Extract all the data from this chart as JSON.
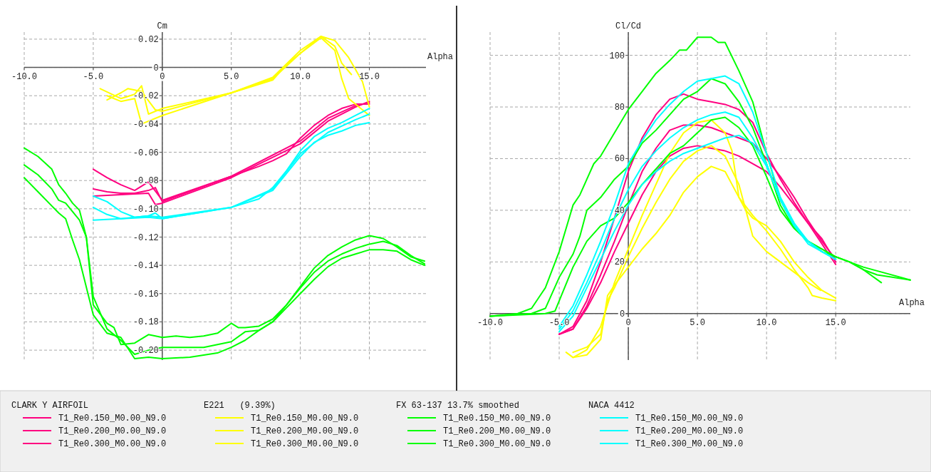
{
  "chart_data": [
    {
      "type": "line",
      "xlabel": "Alpha",
      "ylabel": "Cm",
      "xlim": [
        -10,
        19.1
      ],
      "ylim": [
        -0.207,
        0.025
      ],
      "xticks": [
        {
          "value": -10,
          "label": "-10.0"
        },
        {
          "value": -5,
          "label": "-5.0"
        },
        {
          "value": 0,
          "label": "0"
        },
        {
          "value": 5,
          "label": "5.0"
        },
        {
          "value": 10,
          "label": "10.0"
        },
        {
          "value": 15,
          "label": "15.0"
        }
      ],
      "yticks": [
        {
          "value": 0.02,
          "label": "0.02"
        },
        {
          "value": 0,
          "label": "0"
        },
        {
          "value": -0.02,
          "label": "-0.02"
        },
        {
          "value": -0.04,
          "label": "-0.04"
        },
        {
          "value": -0.06,
          "label": "-0.06"
        },
        {
          "value": -0.08,
          "label": "-0.08"
        },
        {
          "value": -0.1,
          "label": "-0.10"
        },
        {
          "value": -0.12,
          "label": "-0.12"
        },
        {
          "value": -0.14,
          "label": "-0.14"
        },
        {
          "value": -0.16,
          "label": "-0.16"
        },
        {
          "value": -0.18,
          "label": "-0.18"
        },
        {
          "value": -0.2,
          "label": "-0.20"
        }
      ],
      "grid": true,
      "legend": "bottom",
      "line_style": "solid",
      "marker": "none",
      "annotations": [
        "CLARK Y AIRFOIL",
        "E221   (9.39%)",
        "FX 63-137 13.7% smoothed",
        "NACA 4412"
      ],
      "series": [
        {
          "name": "T1_Re0.150_M0.00_N9.0",
          "color": "#ff0080",
          "x": [
            -5,
            -4,
            -3,
            -2,
            -1,
            0,
            5,
            7,
            8,
            9,
            10,
            11,
            12,
            13,
            14,
            15
          ],
          "values": [
            -0.072,
            -0.078,
            -0.083,
            -0.087,
            -0.081,
            -0.094,
            -0.077,
            -0.07,
            -0.066,
            -0.061,
            -0.05,
            -0.041,
            -0.034,
            -0.029,
            -0.026,
            -0.026
          ]
        },
        {
          "name": "T1_Re0.200_M0.00_N9.0",
          "color": "#ff0080",
          "x": [
            -5,
            -4,
            -3,
            -2,
            -1,
            -0.5,
            0,
            5,
            10,
            12,
            14,
            15
          ],
          "values": [
            -0.086,
            -0.088,
            -0.089,
            -0.089,
            -0.087,
            -0.085,
            -0.095,
            -0.077,
            -0.052,
            -0.036,
            -0.027,
            -0.025
          ]
        },
        {
          "name": "T1_Re0.300_M0.00_N9.0",
          "color": "#ff0080",
          "x": [
            -5,
            -3,
            -1,
            -0.5,
            0,
            5,
            10,
            12,
            14,
            15
          ],
          "values": [
            -0.091,
            -0.09,
            -0.089,
            -0.097,
            -0.096,
            -0.078,
            -0.054,
            -0.038,
            -0.028,
            -0.024
          ]
        },
        {
          "name": "T1_Re0.150_M0.00_N9.0",
          "color": "#ffff00",
          "x": [
            -4.5,
            -3,
            -2,
            -1.5,
            -1,
            0,
            5,
            8,
            9,
            10,
            11,
            11.5,
            12.5,
            13,
            13.7
          ],
          "values": [
            -0.015,
            -0.022,
            -0.019,
            -0.013,
            -0.033,
            -0.029,
            -0.018,
            -0.009,
            0.002,
            0.01,
            0.018,
            0.022,
            0.015,
            0.003,
            -0.005
          ]
        },
        {
          "name": "T1_Re0.200_M0.00_N9.0",
          "color": "#ffff00",
          "x": [
            -4,
            -3,
            -2.5,
            -1.5,
            -0.5,
            0,
            5,
            8,
            10,
            11.5,
            12.5,
            13.5,
            14.5,
            15
          ],
          "values": [
            -0.023,
            -0.018,
            -0.015,
            -0.017,
            -0.03,
            -0.031,
            -0.018,
            -0.007,
            0.012,
            0.022,
            0.019,
            0.007,
            -0.01,
            -0.028
          ]
        },
        {
          "name": "T1_Re0.300_M0.00_N9.0",
          "color": "#ffff00",
          "x": [
            -4,
            -3,
            -2,
            -1.5,
            0,
            5,
            8,
            10,
            11.5,
            12.5,
            13,
            13.5,
            15
          ],
          "values": [
            -0.02,
            -0.024,
            -0.022,
            -0.04,
            -0.034,
            -0.018,
            -0.008,
            0.01,
            0.021,
            0.012,
            -0.008,
            -0.022,
            -0.034
          ]
        },
        {
          "name": "T1_Re0.150_M0.00_N9.0",
          "color": "#00ff00",
          "x": [
            -10,
            -9,
            -8,
            -7.5,
            -7,
            -6.5,
            -6,
            -5.5,
            -5,
            -4,
            -3.5,
            -3,
            -2,
            -1,
            0,
            1,
            2,
            3,
            4,
            5,
            5.5,
            6,
            7,
            8,
            9,
            10,
            11,
            12,
            13,
            14,
            15,
            16,
            17,
            18,
            19
          ],
          "values": [
            -0.057,
            -0.063,
            -0.072,
            -0.083,
            -0.089,
            -0.096,
            -0.101,
            -0.12,
            -0.168,
            -0.181,
            -0.184,
            -0.196,
            -0.195,
            -0.189,
            -0.191,
            -0.19,
            -0.191,
            -0.19,
            -0.188,
            -0.181,
            -0.184,
            -0.184,
            -0.183,
            -0.178,
            -0.168,
            -0.155,
            -0.142,
            -0.133,
            -0.127,
            -0.122,
            -0.119,
            -0.121,
            -0.127,
            -0.134,
            -0.137
          ]
        },
        {
          "name": "T1_Re0.200_M0.00_N9.0",
          "color": "#00ff00",
          "x": [
            -10,
            -9,
            -8,
            -7.5,
            -7,
            -6,
            -5.5,
            -5,
            -4,
            -3,
            -2,
            -1,
            0,
            3,
            5,
            6,
            7,
            8,
            9,
            10,
            11,
            12,
            13,
            14,
            15,
            16,
            17,
            18,
            19
          ],
          "values": [
            -0.069,
            -0.076,
            -0.086,
            -0.094,
            -0.096,
            -0.108,
            -0.12,
            -0.162,
            -0.185,
            -0.193,
            -0.203,
            -0.2,
            -0.198,
            -0.198,
            -0.194,
            -0.187,
            -0.186,
            -0.18,
            -0.168,
            -0.156,
            -0.145,
            -0.137,
            -0.132,
            -0.128,
            -0.125,
            -0.123,
            -0.126,
            -0.133,
            -0.139
          ]
        },
        {
          "name": "T1_Re0.300_M0.00_N9.0",
          "color": "#00ff00",
          "x": [
            -10,
            -9,
            -8,
            -7.5,
            -7,
            -6.5,
            -6,
            -5,
            -4,
            -3,
            -2,
            -1,
            0,
            2,
            4,
            5,
            6,
            7,
            8,
            9,
            10,
            11,
            12,
            13,
            14,
            15,
            16,
            17,
            18,
            19
          ],
          "values": [
            -0.078,
            -0.088,
            -0.098,
            -0.103,
            -0.107,
            -0.122,
            -0.136,
            -0.175,
            -0.188,
            -0.191,
            -0.206,
            -0.205,
            -0.206,
            -0.205,
            -0.202,
            -0.198,
            -0.193,
            -0.186,
            -0.18,
            -0.17,
            -0.16,
            -0.15,
            -0.141,
            -0.135,
            -0.132,
            -0.129,
            -0.129,
            -0.13,
            -0.136,
            -0.14
          ]
        },
        {
          "name": "T1_Re0.150_M0.00_N9.0",
          "color": "#00ffff",
          "x": [
            -5,
            -4,
            -3,
            -2,
            -1,
            -0.5,
            0,
            5,
            7,
            8,
            9,
            10,
            11,
            12,
            13,
            14,
            15
          ],
          "values": [
            -0.091,
            -0.095,
            -0.102,
            -0.106,
            -0.105,
            -0.103,
            -0.107,
            -0.099,
            -0.093,
            -0.085,
            -0.073,
            -0.059,
            -0.049,
            -0.043,
            -0.039,
            -0.034,
            -0.029
          ]
        },
        {
          "name": "T1_Re0.200_M0.00_N9.0",
          "color": "#00ffff",
          "x": [
            -5,
            -4,
            -3,
            -1,
            0,
            5,
            8,
            10,
            12,
            14,
            15
          ],
          "values": [
            -0.099,
            -0.104,
            -0.107,
            -0.106,
            -0.107,
            -0.099,
            -0.086,
            -0.061,
            -0.046,
            -0.037,
            -0.033
          ]
        },
        {
          "name": "T1_Re0.300_M0.00_N9.0",
          "color": "#00ffff",
          "x": [
            -5,
            -3,
            -1,
            0,
            5,
            8,
            10,
            11,
            12,
            13,
            14,
            15
          ],
          "values": [
            -0.108,
            -0.107,
            -0.105,
            -0.106,
            -0.099,
            -0.087,
            -0.063,
            -0.053,
            -0.048,
            -0.045,
            -0.041,
            -0.039
          ]
        }
      ]
    },
    {
      "type": "line",
      "xlabel": "Alpha",
      "ylabel": "Cl/Cd",
      "xlim": [
        -10,
        20.4
      ],
      "ylim": [
        -18,
        109
      ],
      "xticks": [
        {
          "value": -10,
          "label": "-10.0"
        },
        {
          "value": -5,
          "label": "-5.0"
        },
        {
          "value": 0,
          "label": "0"
        },
        {
          "value": 5,
          "label": "5.0"
        },
        {
          "value": 10,
          "label": "10.0"
        },
        {
          "value": 15,
          "label": "15.0"
        }
      ],
      "yticks": [
        0,
        20,
        40,
        60,
        80,
        100
      ],
      "grid": true,
      "line_style": "solid",
      "marker": "none",
      "series": [
        {
          "color": "#ff0080",
          "x": [
            -5,
            -4,
            -3,
            -2,
            -1,
            0,
            1,
            2,
            3,
            4,
            5,
            6,
            7,
            8,
            9,
            10,
            11,
            12,
            13,
            14,
            15
          ],
          "values": [
            -8,
            -5,
            5,
            20,
            37,
            55,
            68,
            77,
            83,
            85,
            83,
            82,
            81,
            79,
            74,
            62,
            52,
            43,
            35,
            27,
            19
          ]
        },
        {
          "color": "#ff0080",
          "x": [
            -5,
            -4,
            -3,
            -2,
            -1,
            0,
            1,
            2,
            3,
            4,
            5,
            6,
            7,
            8,
            9,
            10,
            11,
            12,
            13,
            14,
            15
          ],
          "values": [
            -8,
            -6,
            3,
            15,
            28,
            42,
            55,
            64,
            71,
            73,
            73,
            72,
            70,
            68,
            66,
            60,
            53,
            45,
            36,
            28,
            21
          ]
        },
        {
          "color": "#ff0080",
          "x": [
            -5,
            -4,
            -3,
            -2,
            -1,
            0,
            1,
            2,
            3,
            4,
            5,
            6,
            7,
            8,
            9,
            10,
            11,
            12,
            13,
            14,
            15
          ],
          "values": [
            -8,
            -6,
            2,
            12,
            24,
            35,
            46,
            55,
            61,
            64,
            65,
            64,
            63,
            61,
            58,
            55,
            49,
            42,
            35,
            29,
            20
          ]
        },
        {
          "color": "#ffff00",
          "x": [
            -4.5,
            -4,
            -3,
            -2,
            -1,
            0,
            1,
            2,
            3,
            4,
            5,
            6,
            7,
            7.5,
            8,
            8.5,
            9,
            10,
            11,
            12,
            13,
            14,
            15
          ],
          "values": [
            -15,
            -17,
            -14,
            -5,
            12,
            25,
            38,
            50,
            62,
            70,
            74,
            75,
            70,
            63,
            45,
            40,
            37,
            34,
            28,
            20,
            14,
            9,
            6
          ]
        },
        {
          "color": "#ffff00",
          "x": [
            -4,
            -3,
            -2,
            -1.5,
            -1,
            0,
            1,
            2,
            3,
            4,
            5,
            6,
            7,
            8,
            8.5,
            9,
            10,
            11,
            12,
            13,
            13.9
          ],
          "values": [
            -15,
            -13,
            -8,
            5,
            10,
            22,
            33,
            43,
            52,
            59,
            63,
            65,
            61,
            50,
            40,
            30,
            24,
            20,
            16,
            12,
            9
          ]
        },
        {
          "color": "#ffff00",
          "x": [
            -4,
            -3,
            -2,
            -1.5,
            -1,
            0,
            1,
            2,
            3,
            4,
            5,
            6,
            7,
            8,
            9,
            10,
            11,
            12,
            13,
            13.3,
            14,
            15
          ],
          "values": [
            -17,
            -16,
            -10,
            7,
            11,
            18,
            25,
            31,
            38,
            47,
            53,
            57,
            55,
            45,
            38,
            32,
            25,
            17,
            10,
            7,
            6,
            5
          ]
        },
        {
          "color": "#00ff00",
          "x": [
            -10,
            -8,
            -7,
            -6,
            -5,
            -4,
            -3.5,
            -3,
            -2.5,
            -2,
            -1,
            0,
            1,
            2,
            3,
            3.7,
            4.2,
            5,
            5.5,
            6,
            6.5,
            7,
            8,
            9,
            10,
            11,
            12,
            13,
            14,
            15,
            16,
            17,
            18,
            20.4
          ],
          "values": [
            -1,
            0,
            2,
            10,
            24,
            42,
            46,
            52,
            58,
            61,
            70,
            79,
            86,
            93,
            98,
            102,
            102,
            107,
            107,
            107,
            105,
            105,
            94,
            82,
            62,
            44,
            34,
            28,
            25,
            22,
            20,
            17,
            15,
            13
          ]
        },
        {
          "color": "#00ff00",
          "x": [
            -10,
            -7,
            -6,
            -5,
            -4,
            -3.5,
            -3,
            -2,
            -1,
            0,
            1,
            2,
            3,
            4,
            5,
            6,
            7,
            8,
            9,
            10,
            11,
            12,
            13,
            14,
            15,
            16,
            17,
            18.3
          ],
          "values": [
            -1,
            0,
            2,
            14,
            23,
            30,
            40,
            45,
            52,
            57,
            66,
            71,
            77,
            83,
            86,
            91,
            89,
            82,
            72,
            58,
            42,
            33,
            28,
            24,
            22,
            20,
            17,
            12
          ]
        },
        {
          "color": "#00ff00",
          "x": [
            -10,
            -6,
            -5.3,
            -4,
            -3,
            -2,
            -1,
            0,
            1,
            2,
            3,
            4,
            5,
            6,
            7,
            8,
            9,
            10,
            11,
            12,
            13,
            14,
            15,
            17,
            20.4
          ],
          "values": [
            -1,
            0,
            1,
            18,
            28,
            34,
            37,
            43,
            50,
            56,
            62,
            65,
            70,
            75,
            76,
            72,
            65,
            53,
            40,
            33,
            28,
            25,
            22,
            18,
            13
          ]
        },
        {
          "color": "#00ffff",
          "x": [
            -5,
            -4,
            -3,
            -2,
            -1,
            0,
            1,
            2,
            3,
            4,
            5,
            6,
            7,
            8,
            9,
            10,
            11,
            12,
            13,
            14,
            15
          ],
          "values": [
            -5,
            3,
            15,
            28,
            42,
            58,
            67,
            75,
            81,
            86,
            90,
            91,
            92,
            89,
            78,
            62,
            45,
            35,
            28,
            24,
            21
          ]
        },
        {
          "color": "#00ffff",
          "x": [
            -5,
            -4,
            -3,
            -2,
            -1,
            0,
            1,
            2,
            3,
            4,
            5,
            6,
            7,
            8,
            9,
            10,
            11,
            12,
            13,
            14,
            15
          ],
          "values": [
            -6,
            1,
            12,
            24,
            37,
            48,
            57,
            63,
            68,
            72,
            75,
            77,
            78,
            76,
            68,
            58,
            44,
            34,
            28,
            24,
            21
          ]
        },
        {
          "color": "#00ffff",
          "x": [
            -5,
            -4,
            -3,
            -2,
            -1,
            0,
            1,
            2,
            3,
            4,
            5,
            6,
            7,
            8,
            9,
            10,
            11,
            12,
            13,
            14,
            15
          ],
          "values": [
            -7,
            -1,
            10,
            21,
            32,
            42,
            50,
            55,
            59,
            62,
            64,
            66,
            68,
            69,
            66,
            57,
            44,
            34,
            27,
            24,
            21
          ]
        }
      ]
    }
  ]
}
